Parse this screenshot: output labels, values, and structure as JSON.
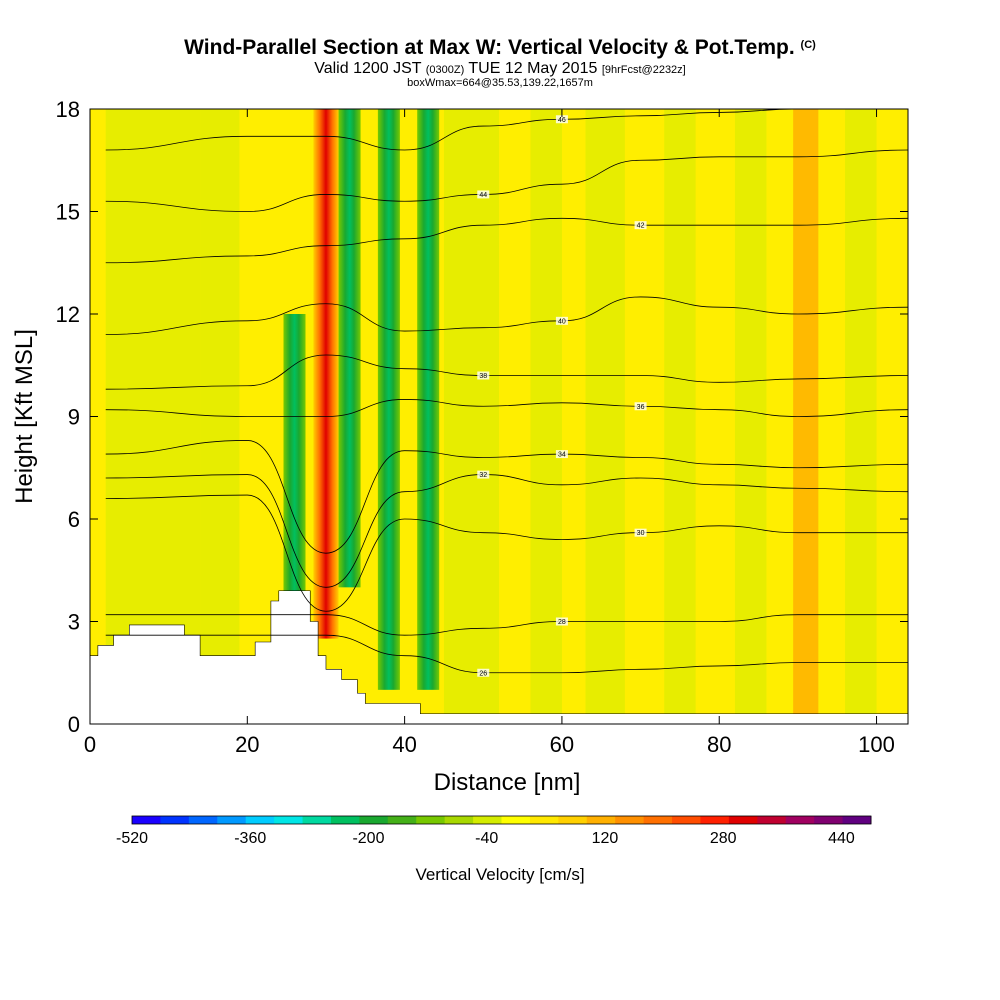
{
  "title_main": "Wind-Parallel Section at Max W: Vertical Velocity & Pot.Temp.",
  "title_mark": "(C)",
  "subtitle_a": "Valid 1200 JST",
  "subtitle_b": "(0300Z)",
  "subtitle_c": "TUE 12 May 2015",
  "subtitle_d": "[9hrFcst@2232z]",
  "subtitle2": "boxWmax=664@35.53,139.22,1657m",
  "chart_data": {
    "type": "heatmap",
    "xlabel": "Distance [nm]",
    "ylabel": "Height [Kft MSL]",
    "xlim": [
      0,
      104
    ],
    "ylim": [
      0,
      18
    ],
    "xticks": [
      "0",
      "20",
      "40",
      "60",
      "80",
      "100"
    ],
    "yticks": [
      "0",
      "3",
      "6",
      "9",
      "12",
      "15",
      "18"
    ],
    "colorbar": {
      "label": "Vertical Velocity [cm/s]",
      "ticks": [
        "-520",
        "-360",
        "-200",
        "-40",
        "120",
        "280",
        "440"
      ],
      "levels": [
        -520,
        480
      ],
      "colors": [
        "#1a00ff",
        "#0033ff",
        "#0066ff",
        "#0099ff",
        "#00ccff",
        "#00e6e6",
        "#00d9a0",
        "#00c060",
        "#1aa830",
        "#44b018",
        "#77c800",
        "#a8d800",
        "#d4ec00",
        "#ffff00",
        "#ffe800",
        "#ffd000",
        "#ffb000",
        "#ff9000",
        "#ff7000",
        "#ff4d00",
        "#ff2000",
        "#e00000",
        "#c00030",
        "#a00060",
        "#800070",
        "#600080"
      ]
    },
    "vertical_velocity_features": [
      {
        "x": 26,
        "y_range": [
          3.5,
          12
        ],
        "w": -280,
        "type": "downdraft"
      },
      {
        "x": 30,
        "y_range": [
          2.5,
          18
        ],
        "w": 440,
        "type": "updraft"
      },
      {
        "x": 33,
        "y_range": [
          4,
          18
        ],
        "w": -200,
        "type": "downdraft"
      },
      {
        "x": 38,
        "y_range": [
          1,
          18
        ],
        "w": -160,
        "type": "downdraft"
      },
      {
        "x": 43,
        "y_range": [
          1,
          18
        ],
        "w": -120,
        "type": "downdraft"
      },
      {
        "x": 91,
        "y_range": [
          0,
          18
        ],
        "w": 160,
        "type": "updraft"
      }
    ],
    "potential_temperature_contours": [
      {
        "label": "26",
        "x": [
          2,
          20,
          30,
          40,
          50,
          60,
          70,
          80,
          90,
          104
        ],
        "y": [
          2.6,
          2.6,
          2.6,
          2.0,
          1.5,
          1.5,
          1.6,
          1.7,
          1.8,
          1.8
        ]
      },
      {
        "label": "28",
        "x": [
          2,
          20,
          30,
          40,
          50,
          60,
          70,
          80,
          90,
          104
        ],
        "y": [
          3.2,
          3.2,
          3.2,
          2.6,
          2.8,
          3.0,
          3.0,
          3.0,
          3.2,
          3.2
        ]
      },
      {
        "label": "30",
        "x": [
          2,
          20,
          30,
          40,
          50,
          60,
          70,
          80,
          90,
          104
        ],
        "y": [
          6.6,
          6.7,
          3.3,
          6.0,
          5.6,
          5.4,
          5.6,
          5.8,
          5.6,
          5.6
        ]
      },
      {
        "label": "32",
        "x": [
          2,
          20,
          30,
          40,
          50,
          60,
          70,
          80,
          90,
          104
        ],
        "y": [
          7.2,
          7.3,
          4.0,
          6.8,
          7.3,
          7.0,
          7.2,
          7.0,
          6.9,
          6.8
        ]
      },
      {
        "label": "34",
        "x": [
          2,
          20,
          30,
          40,
          50,
          60,
          70,
          80,
          90,
          104
        ],
        "y": [
          7.9,
          8.3,
          5.0,
          8.0,
          7.8,
          7.9,
          7.8,
          7.6,
          7.5,
          7.6
        ]
      },
      {
        "label": "36",
        "x": [
          2,
          20,
          30,
          40,
          50,
          60,
          70,
          80,
          90,
          104
        ],
        "y": [
          9.2,
          9.0,
          9.0,
          9.5,
          9.3,
          9.4,
          9.3,
          9.2,
          9.0,
          9.2
        ]
      },
      {
        "label": "38",
        "x": [
          2,
          20,
          30,
          40,
          50,
          60,
          70,
          80,
          90,
          104
        ],
        "y": [
          9.8,
          9.9,
          10.8,
          10.4,
          10.2,
          10.2,
          10.2,
          10.0,
          10.1,
          10.2
        ]
      },
      {
        "label": "40",
        "x": [
          2,
          20,
          30,
          40,
          50,
          60,
          70,
          80,
          90,
          104
        ],
        "y": [
          11.4,
          11.8,
          12.3,
          11.5,
          11.6,
          11.8,
          12.5,
          12.2,
          12.0,
          12.2
        ]
      },
      {
        "label": "42",
        "x": [
          2,
          20,
          30,
          40,
          50,
          60,
          70,
          80,
          90,
          104
        ],
        "y": [
          13.5,
          13.7,
          14.0,
          14.2,
          14.6,
          14.8,
          14.6,
          14.6,
          14.6,
          14.8
        ]
      },
      {
        "label": "44",
        "x": [
          2,
          20,
          30,
          40,
          50,
          60,
          70,
          80,
          90,
          104
        ],
        "y": [
          15.3,
          15.0,
          15.5,
          15.3,
          15.5,
          15.8,
          16.5,
          16.6,
          16.6,
          16.8
        ]
      },
      {
        "label": "46",
        "x": [
          2,
          20,
          30,
          40,
          50,
          60,
          70,
          80,
          90,
          104
        ],
        "y": [
          16.8,
          17.2,
          17.2,
          16.8,
          17.5,
          17.7,
          17.8,
          17.9,
          18.0,
          18.0
        ]
      }
    ]
  }
}
